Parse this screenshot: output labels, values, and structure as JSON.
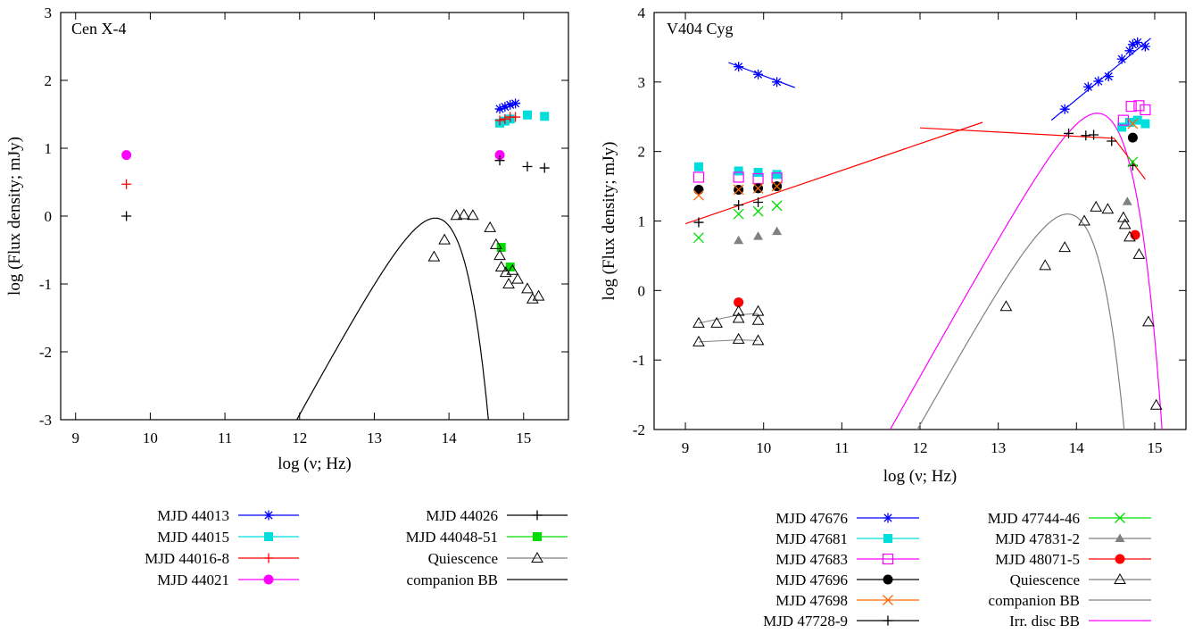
{
  "chart_data": [
    {
      "type": "scatter",
      "title": "Cen X-4",
      "xlabel": "log (ν; Hz)",
      "ylabel": "log (Flux density; mJy)",
      "xlim": [
        8.8,
        15.6
      ],
      "ylim": [
        -3,
        3
      ],
      "xticks": [
        9,
        10,
        11,
        12,
        13,
        14,
        15
      ],
      "yticks": [
        -3,
        -2,
        -1,
        0,
        1,
        2,
        3
      ],
      "legend_position": "below",
      "series": [
        {
          "name": "MJD 44013",
          "color": "#0000ff",
          "marker": "asterisk",
          "line": true,
          "points": [
            [
              14.68,
              1.58
            ],
            [
              14.75,
              1.61
            ],
            [
              14.82,
              1.64
            ],
            [
              14.89,
              1.66
            ]
          ],
          "fit": [
            [
              14.64,
              1.56
            ],
            [
              14.95,
              1.67
            ]
          ]
        },
        {
          "name": "MJD 44015",
          "color": "#00dddd",
          "marker": "filled-square",
          "line": false,
          "points": [
            [
              14.68,
              1.37
            ],
            [
              14.75,
              1.4
            ],
            [
              14.82,
              1.43
            ],
            [
              15.05,
              1.49
            ],
            [
              15.28,
              1.47
            ]
          ]
        },
        {
          "name": "MJD 44016-8",
          "color": "#ff0000",
          "marker": "plus",
          "line": false,
          "points": [
            [
              9.68,
              0.47
            ],
            [
              14.68,
              1.41
            ],
            [
              14.75,
              1.43
            ],
            [
              14.82,
              1.46
            ],
            [
              14.89,
              1.46
            ]
          ]
        },
        {
          "name": "MJD 44021",
          "color": "#ff00ff",
          "marker": "filled-circle",
          "line": false,
          "points": [
            [
              9.68,
              0.9
            ],
            [
              14.68,
              0.9
            ]
          ]
        },
        {
          "name": "MJD 44026",
          "color": "#000000",
          "marker": "plus",
          "line": false,
          "points": [
            [
              9.68,
              0.0
            ],
            [
              14.68,
              0.82
            ],
            [
              15.05,
              0.73
            ],
            [
              15.28,
              0.71
            ]
          ]
        },
        {
          "name": "MJD 44048-51",
          "color": "#00dd00",
          "marker": "filled-square",
          "line": false,
          "points": [
            [
              14.7,
              -0.46
            ],
            [
              14.82,
              -0.75
            ]
          ]
        },
        {
          "name": "Quiescence",
          "color": "#808080",
          "marker": "open-triangle",
          "line": false,
          "points": [
            [
              13.8,
              -0.6
            ],
            [
              13.94,
              -0.35
            ],
            [
              14.1,
              0.01
            ],
            [
              14.2,
              0.02
            ],
            [
              14.32,
              0.01
            ],
            [
              14.55,
              -0.17
            ],
            [
              14.63,
              -0.42
            ],
            [
              14.68,
              -0.58
            ],
            [
              14.7,
              -0.75
            ],
            [
              14.76,
              -0.83
            ],
            [
              14.8,
              -1.0
            ],
            [
              14.85,
              -0.8
            ],
            [
              14.92,
              -0.93
            ],
            [
              15.05,
              -1.07
            ],
            [
              15.12,
              -1.22
            ],
            [
              15.2,
              -1.18
            ]
          ]
        },
        {
          "name": "companion BB",
          "color": "#000000",
          "marker": "none",
          "line": true,
          "curve": {
            "kind": "blackbody",
            "peak_x": 14.33,
            "peak_y": -0.03
          }
        }
      ],
      "legend_columns": [
        [
          "MJD 44013",
          "MJD 44015",
          "MJD 44016-8",
          "MJD 44021"
        ],
        [
          "MJD 44026",
          "MJD 44048-51",
          "Quiescence",
          "companion BB"
        ]
      ]
    },
    {
      "type": "scatter",
      "title": "V404 Cyg",
      "xlabel": "log (ν; Hz)",
      "ylabel": "log (Flux density; mJy)",
      "xlim": [
        8.6,
        15.4
      ],
      "ylim": [
        -2,
        4
      ],
      "xticks": [
        9,
        10,
        11,
        12,
        13,
        14,
        15
      ],
      "yticks": [
        -2,
        -1,
        0,
        1,
        2,
        3,
        4
      ],
      "legend_position": "below",
      "series": [
        {
          "name": "MJD 47676",
          "color": "#0000ff",
          "marker": "asterisk",
          "line": true,
          "points": [
            [
              9.68,
              3.22
            ],
            [
              9.93,
              3.11
            ],
            [
              10.17,
              3.0
            ],
            [
              13.85,
              2.61
            ],
            [
              14.15,
              2.93
            ],
            [
              14.28,
              3.01
            ],
            [
              14.41,
              3.08
            ],
            [
              14.58,
              3.33
            ],
            [
              14.68,
              3.45
            ],
            [
              14.78,
              3.57
            ],
            [
              14.88,
              3.51
            ],
            [
              14.72,
              3.54
            ]
          ],
          "fit": [
            [
              9.55,
              3.28
            ],
            [
              10.4,
              2.92
            ]
          ],
          "fit2": [
            [
              13.68,
              2.45
            ],
            [
              14.95,
              3.63
            ]
          ]
        },
        {
          "name": "MJD 47681",
          "color": "#00dddd",
          "marker": "filled-square",
          "line": false,
          "points": [
            [
              9.17,
              1.78
            ],
            [
              9.68,
              1.72
            ],
            [
              9.93,
              1.7
            ],
            [
              10.17,
              1.67
            ],
            [
              14.58,
              2.35
            ],
            [
              14.68,
              2.42
            ],
            [
              14.78,
              2.45
            ],
            [
              14.88,
              2.4
            ]
          ]
        },
        {
          "name": "MJD 47683",
          "color": "#ff00ff",
          "marker": "open-square",
          "line": false,
          "points": [
            [
              9.17,
              1.63
            ],
            [
              9.68,
              1.63
            ],
            [
              9.93,
              1.61
            ],
            [
              10.17,
              1.62
            ],
            [
              14.6,
              2.45
            ],
            [
              14.7,
              2.65
            ],
            [
              14.8,
              2.66
            ],
            [
              14.88,
              2.6
            ]
          ]
        },
        {
          "name": "MJD 47696",
          "color": "#000000",
          "marker": "filled-circle",
          "line": false,
          "points": [
            [
              9.17,
              1.45
            ],
            [
              9.68,
              1.45
            ],
            [
              9.93,
              1.47
            ],
            [
              10.17,
              1.5
            ],
            [
              14.72,
              2.2
            ]
          ]
        },
        {
          "name": "MJD 47698",
          "color": "#ff6600",
          "marker": "cross",
          "line": false,
          "points": [
            [
              9.17,
              1.37
            ],
            [
              9.68,
              1.45
            ],
            [
              9.93,
              1.47
            ],
            [
              10.17,
              1.5
            ],
            [
              14.72,
              2.4
            ]
          ]
        },
        {
          "name": "MJD 47728-9",
          "color": "#000000",
          "marker": "plus",
          "line": false,
          "points": [
            [
              9.17,
              0.98
            ],
            [
              9.68,
              1.23
            ],
            [
              9.93,
              1.27
            ],
            [
              13.9,
              2.26
            ],
            [
              14.12,
              2.23
            ],
            [
              14.22,
              2.24
            ],
            [
              14.45,
              2.15
            ],
            [
              14.72,
              1.8
            ]
          ]
        },
        {
          "name": "MJD 47744-46",
          "color": "#00dd00",
          "marker": "cross",
          "line": false,
          "points": [
            [
              9.17,
              0.76
            ],
            [
              9.68,
              1.1
            ],
            [
              9.93,
              1.14
            ],
            [
              10.17,
              1.22
            ],
            [
              14.72,
              1.85
            ]
          ]
        },
        {
          "name": "MJD 47831-2",
          "color": "#808080",
          "marker": "filled-triangle",
          "line": false,
          "points": [
            [
              9.68,
              0.72
            ],
            [
              9.93,
              0.78
            ],
            [
              10.17,
              0.85
            ],
            [
              14.65,
              1.28
            ]
          ]
        },
        {
          "name": "MJD 48071-5",
          "color": "#ff0000",
          "marker": "filled-circle",
          "line": false,
          "points": [
            [
              9.68,
              -0.17
            ],
            [
              14.75,
              0.8
            ]
          ]
        },
        {
          "name": "Quiescence",
          "color": "#808080",
          "marker": "open-triangle",
          "line": false,
          "points": [
            [
              9.17,
              -0.47
            ],
            [
              9.4,
              -0.47
            ],
            [
              9.68,
              -0.3
            ],
            [
              9.93,
              -0.3
            ],
            [
              9.68,
              -0.4
            ],
            [
              9.93,
              -0.43
            ],
            [
              9.17,
              -0.74
            ],
            [
              9.68,
              -0.7
            ],
            [
              9.93,
              -0.72
            ],
            [
              13.1,
              -0.23
            ],
            [
              13.6,
              0.36
            ],
            [
              13.85,
              0.62
            ],
            [
              14.1,
              1.0
            ],
            [
              14.25,
              1.2
            ],
            [
              14.4,
              1.17
            ],
            [
              14.6,
              1.05
            ],
            [
              14.62,
              0.95
            ],
            [
              14.68,
              0.77
            ],
            [
              14.8,
              0.52
            ],
            [
              14.92,
              -0.45
            ],
            [
              15.02,
              -1.65
            ]
          ],
          "segments": [
            [
              [
                9.17,
                -0.47
              ],
              [
                9.68,
                -0.35
              ],
              [
                9.93,
                -0.33
              ]
            ],
            [
              [
                9.17,
                -0.74
              ],
              [
                9.68,
                -0.71
              ],
              [
                9.93,
                -0.72
              ]
            ]
          ]
        },
        {
          "name": "companion BB",
          "color": "#808080",
          "marker": "none",
          "line": true,
          "curve": {
            "kind": "blackbody",
            "peak_x": 14.4,
            "peak_y": 1.1
          }
        },
        {
          "name": "Irr. disc BB",
          "color": "#ff00ff",
          "marker": "none",
          "line": true,
          "curve": {
            "kind": "blackbody",
            "peak_x": 14.78,
            "peak_y": 2.55
          }
        }
      ],
      "powerlaw_fits": {
        "color": "#ff0000",
        "lines": [
          [
            [
              9.0,
              0.96
            ],
            [
              12.8,
              2.42
            ]
          ],
          [
            [
              12.0,
              2.34
            ],
            [
              14.48,
              2.19
            ],
            [
              14.88,
              1.6
            ]
          ]
        ]
      },
      "legend_columns": [
        [
          "MJD 47676",
          "MJD 47681",
          "MJD 47683",
          "MJD 47696",
          "MJD 47698",
          "MJD 47728-9"
        ],
        [
          "MJD 47744-46",
          "MJD 47831-2",
          "MJD 48071-5",
          "Quiescence",
          "companion BB",
          "Irr. disc BB"
        ]
      ]
    }
  ]
}
